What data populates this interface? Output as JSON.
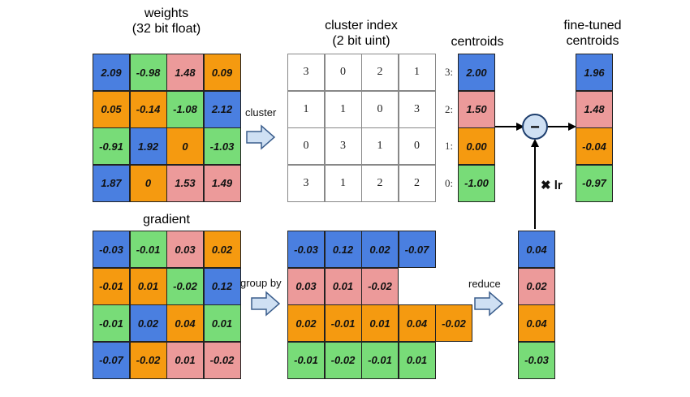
{
  "titles": {
    "weights_line1": "weights",
    "weights_line2": "(32 bit float)",
    "index_line1": "cluster index",
    "index_line2": "(2 bit uint)",
    "centroids": "centroids",
    "fine_line1": "fine-tuned",
    "fine_line2": "centroids",
    "gradient": "gradient"
  },
  "labels": {
    "cluster": "cluster",
    "group_by": "group by",
    "reduce": "reduce",
    "lr": "✖ lr"
  },
  "colors": {
    "c3": "#4a7fe0",
    "c2": "#ec9a9a",
    "c1": "#f59a10",
    "c0": "#78dc78"
  },
  "weights": [
    [
      {
        "v": "2.09",
        "c": 3
      },
      {
        "v": "-0.98",
        "c": 0
      },
      {
        "v": "1.48",
        "c": 2
      },
      {
        "v": "0.09",
        "c": 1
      }
    ],
    [
      {
        "v": "0.05",
        "c": 1
      },
      {
        "v": "-0.14",
        "c": 1
      },
      {
        "v": "-1.08",
        "c": 0
      },
      {
        "v": "2.12",
        "c": 3
      }
    ],
    [
      {
        "v": "-0.91",
        "c": 0
      },
      {
        "v": "1.92",
        "c": 3
      },
      {
        "v": "0",
        "c": 1
      },
      {
        "v": "-1.03",
        "c": 0
      }
    ],
    [
      {
        "v": "1.87",
        "c": 3
      },
      {
        "v": "0",
        "c": 1
      },
      {
        "v": "1.53",
        "c": 2
      },
      {
        "v": "1.49",
        "c": 2
      }
    ]
  ],
  "cluster_index": [
    [
      "3",
      "0",
      "2",
      "1"
    ],
    [
      "1",
      "1",
      "0",
      "3"
    ],
    [
      "0",
      "3",
      "1",
      "0"
    ],
    [
      "3",
      "1",
      "2",
      "2"
    ]
  ],
  "centroids": [
    {
      "label": "3:",
      "v": "2.00",
      "c": 3
    },
    {
      "label": "2:",
      "v": "1.50",
      "c": 2
    },
    {
      "label": "1:",
      "v": "0.00",
      "c": 1
    },
    {
      "label": "0:",
      "v": "-1.00",
      "c": 0
    }
  ],
  "fine_tuned": [
    {
      "v": "1.96",
      "c": 3
    },
    {
      "v": "1.48",
      "c": 2
    },
    {
      "v": "-0.04",
      "c": 1
    },
    {
      "v": "-0.97",
      "c": 0
    }
  ],
  "gradient": [
    [
      {
        "v": "-0.03",
        "c": 3
      },
      {
        "v": "-0.01",
        "c": 0
      },
      {
        "v": "0.03",
        "c": 2
      },
      {
        "v": "0.02",
        "c": 1
      }
    ],
    [
      {
        "v": "-0.01",
        "c": 1
      },
      {
        "v": "0.01",
        "c": 1
      },
      {
        "v": "-0.02",
        "c": 0
      },
      {
        "v": "0.12",
        "c": 3
      }
    ],
    [
      {
        "v": "-0.01",
        "c": 0
      },
      {
        "v": "0.02",
        "c": 3
      },
      {
        "v": "0.04",
        "c": 1
      },
      {
        "v": "0.01",
        "c": 0
      }
    ],
    [
      {
        "v": "-0.07",
        "c": 3
      },
      {
        "v": "-0.02",
        "c": 1
      },
      {
        "v": "0.01",
        "c": 2
      },
      {
        "v": "-0.02",
        "c": 2
      }
    ]
  ],
  "grouped": [
    {
      "c": 3,
      "values": [
        "-0.03",
        "0.12",
        "0.02",
        "-0.07"
      ]
    },
    {
      "c": 2,
      "values": [
        "0.03",
        "0.01",
        "-0.02"
      ]
    },
    {
      "c": 1,
      "values": [
        "0.02",
        "-0.01",
        "0.01",
        "0.04",
        "-0.02"
      ]
    },
    {
      "c": 0,
      "values": [
        "-0.01",
        "-0.02",
        "-0.01",
        "0.01"
      ]
    }
  ],
  "reduced": [
    {
      "v": "0.04",
      "c": 3
    },
    {
      "v": "0.02",
      "c": 2
    },
    {
      "v": "0.04",
      "c": 1
    },
    {
      "v": "-0.03",
      "c": 0
    }
  ],
  "operator": "−"
}
